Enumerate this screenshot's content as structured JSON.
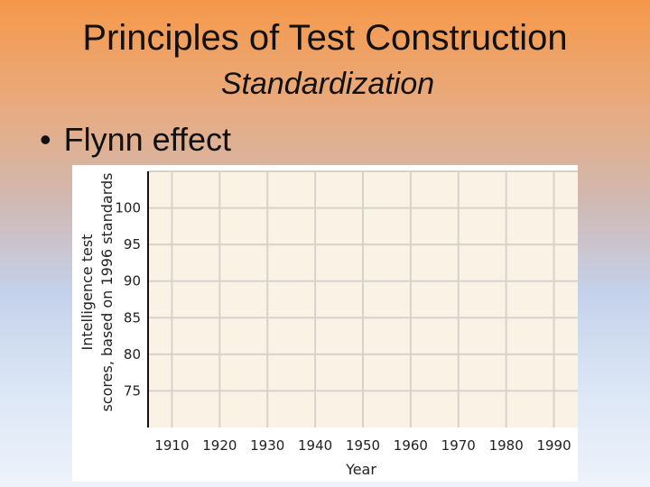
{
  "slide": {
    "title": "Principles of Test Construction",
    "subtitle": "Standardization",
    "bullet": "Flynn effect",
    "bullet_marker": "•"
  },
  "colors": {
    "plot_background": "#fbf2e6",
    "grid": "#d8d2cb",
    "axis": "#111111"
  },
  "chart_data": {
    "type": "line",
    "title": "",
    "xlabel": "Year",
    "ylabel_lines": [
      "Intelligence test",
      "scores, based on 1996 standards"
    ],
    "x_ticks": [
      1910,
      1920,
      1930,
      1940,
      1950,
      1960,
      1970,
      1980,
      1990
    ],
    "y_ticks": [
      75,
      80,
      85,
      90,
      95,
      100
    ],
    "xlim": [
      1905,
      1995
    ],
    "ylim": [
      70,
      105
    ],
    "grid": true,
    "series": []
  }
}
